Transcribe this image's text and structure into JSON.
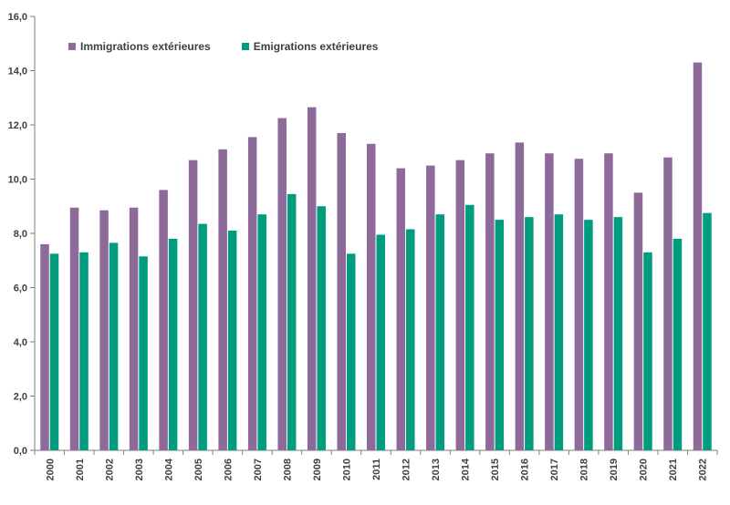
{
  "chart_data": {
    "type": "bar",
    "categories": [
      "2000",
      "2001",
      "2002",
      "2003",
      "2004",
      "2005",
      "2006",
      "2007",
      "2008",
      "2009",
      "2010",
      "2011",
      "2012",
      "2013",
      "2014",
      "2015",
      "2016",
      "2017",
      "2018",
      "2019",
      "2020",
      "2021",
      "2022"
    ],
    "series": [
      {
        "name": "Immigrations extérieures",
        "color": "#8e6a9a",
        "values": [
          7.6,
          8.95,
          8.85,
          8.95,
          9.6,
          10.7,
          11.1,
          11.55,
          12.25,
          12.65,
          11.7,
          11.3,
          10.4,
          10.5,
          10.7,
          10.95,
          11.35,
          10.95,
          10.75,
          10.95,
          9.5,
          10.8,
          14.3
        ]
      },
      {
        "name": "Emigrations extérieures",
        "color": "#009c7e",
        "values": [
          7.25,
          7.3,
          7.65,
          7.15,
          7.8,
          8.35,
          8.1,
          8.7,
          9.45,
          9.0,
          7.25,
          7.95,
          8.15,
          8.7,
          9.05,
          8.5,
          8.6,
          8.7,
          8.5,
          8.6,
          7.3,
          7.8,
          8.75
        ]
      }
    ],
    "y_ticks": [
      "0,0",
      "2,0",
      "4,0",
      "6,0",
      "8,0",
      "10,0",
      "12,0",
      "14,0",
      "16,0"
    ],
    "ylim": [
      0,
      16
    ],
    "grid": false,
    "legend_position": "top-left",
    "title": "",
    "xlabel": "",
    "ylabel": ""
  }
}
